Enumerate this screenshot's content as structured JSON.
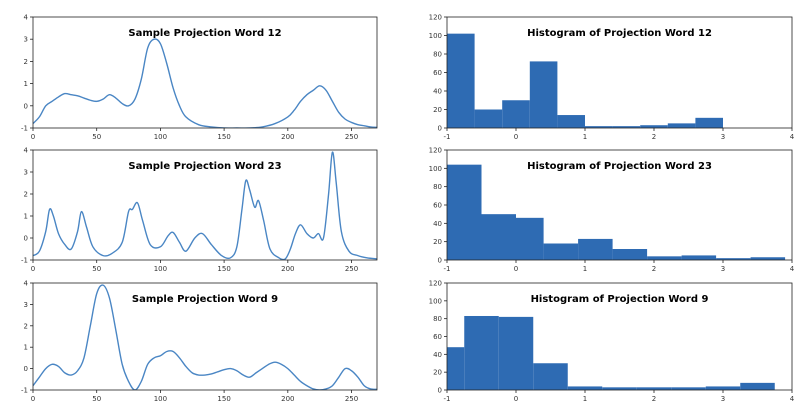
{
  "chart_data": [
    {
      "type": "line",
      "title": "Sample Projection Word 12",
      "xlim": [
        0,
        270
      ],
      "ylim": [
        -1,
        4
      ],
      "xticks": [
        0,
        50,
        100,
        150,
        200,
        250
      ],
      "yticks": [
        -1,
        0,
        1,
        2,
        3,
        4
      ],
      "color": "#4a86c4",
      "x": [
        0,
        5,
        10,
        15,
        20,
        25,
        30,
        35,
        40,
        45,
        50,
        55,
        60,
        65,
        70,
        75,
        80,
        85,
        90,
        95,
        100,
        105,
        110,
        115,
        120,
        130,
        140,
        150,
        160,
        170,
        180,
        190,
        200,
        205,
        210,
        215,
        220,
        225,
        230,
        235,
        240,
        245,
        250,
        255,
        260,
        265,
        270
      ],
      "y": [
        -0.8,
        -0.5,
        0.0,
        0.2,
        0.4,
        0.55,
        0.5,
        0.45,
        0.35,
        0.25,
        0.2,
        0.3,
        0.5,
        0.35,
        0.1,
        0.0,
        0.3,
        1.2,
        2.6,
        3.0,
        2.8,
        1.9,
        0.8,
        0.0,
        -0.5,
        -0.85,
        -0.95,
        -1.0,
        -1.0,
        -1.0,
        -0.95,
        -0.8,
        -0.5,
        -0.2,
        0.2,
        0.5,
        0.7,
        0.9,
        0.7,
        0.2,
        -0.3,
        -0.6,
        -0.75,
        -0.85,
        -0.9,
        -0.95,
        -0.97
      ]
    },
    {
      "type": "bar",
      "title": "Histogram of Projection Word 12",
      "xlim": [
        -1,
        4
      ],
      "ylim": [
        0,
        120
      ],
      "xticks": [
        -1,
        0,
        1,
        2,
        3,
        4
      ],
      "yticks": [
        0,
        20,
        40,
        60,
        80,
        100,
        120
      ],
      "color": "#2e6bb3",
      "bin_edges": [
        -1,
        -0.6,
        -0.2,
        0.2,
        0.6,
        1.0,
        1.4,
        1.8,
        2.2,
        2.6,
        3.0
      ],
      "values": [
        102,
        20,
        30,
        72,
        14,
        2,
        2,
        3,
        5,
        11
      ]
    },
    {
      "type": "line",
      "title": "Sample Projection Word 23",
      "xlim": [
        0,
        270
      ],
      "ylim": [
        -1,
        4
      ],
      "xticks": [
        0,
        50,
        100,
        150,
        200,
        250
      ],
      "yticks": [
        -1,
        0,
        1,
        2,
        3,
        4
      ],
      "color": "#4a86c4",
      "x": [
        0,
        5,
        10,
        13,
        16,
        20,
        25,
        30,
        35,
        38,
        42,
        47,
        55,
        62,
        70,
        75,
        78,
        82,
        86,
        92,
        100,
        106,
        110,
        115,
        120,
        127,
        133,
        140,
        148,
        155,
        160,
        164,
        167,
        170,
        174,
        177,
        181,
        186,
        193,
        198,
        202,
        206,
        210,
        215,
        220,
        224,
        228,
        232,
        235,
        238,
        242,
        248,
        255,
        262,
        270
      ],
      "y": [
        -0.8,
        -0.6,
        0.3,
        1.3,
        1.0,
        0.2,
        -0.3,
        -0.5,
        0.3,
        1.2,
        0.5,
        -0.4,
        -0.8,
        -0.7,
        -0.2,
        1.2,
        1.3,
        1.6,
        0.8,
        -0.3,
        -0.4,
        0.1,
        0.25,
        -0.2,
        -0.6,
        0.0,
        0.2,
        -0.3,
        -0.8,
        -0.9,
        -0.4,
        1.3,
        2.6,
        2.2,
        1.4,
        1.7,
        0.8,
        -0.5,
        -0.9,
        -0.95,
        -0.5,
        0.2,
        0.6,
        0.2,
        0.0,
        0.2,
        0.0,
        2.0,
        3.9,
        2.5,
        0.3,
        -0.6,
        -0.8,
        -0.9,
        -0.95
      ]
    },
    {
      "type": "bar",
      "title": "Histogram of Projection Word 23",
      "xlim": [
        -1,
        4
      ],
      "ylim": [
        0,
        120
      ],
      "xticks": [
        -1,
        0,
        1,
        2,
        3,
        4
      ],
      "yticks": [
        0,
        20,
        40,
        60,
        80,
        100,
        120
      ],
      "color": "#2e6bb3",
      "bin_edges": [
        -1,
        -0.5,
        0.0,
        0.4,
        0.9,
        1.4,
        1.9,
        2.4,
        2.9,
        3.4,
        3.9
      ],
      "values": [
        104,
        50,
        46,
        18,
        23,
        12,
        4,
        5,
        2,
        3
      ]
    },
    {
      "type": "line",
      "title": "Sample Projection Word 9",
      "xlim": [
        0,
        270
      ],
      "ylim": [
        -1,
        4
      ],
      "xticks": [
        0,
        50,
        100,
        150,
        200,
        250
      ],
      "yticks": [
        -1,
        0,
        1,
        2,
        3,
        4
      ],
      "color": "#4a86c4",
      "x": [
        0,
        5,
        10,
        15,
        20,
        25,
        30,
        35,
        40,
        45,
        50,
        55,
        60,
        65,
        70,
        75,
        80,
        85,
        90,
        95,
        100,
        105,
        110,
        115,
        120,
        125,
        130,
        135,
        140,
        145,
        150,
        155,
        160,
        165,
        170,
        175,
        180,
        185,
        190,
        195,
        200,
        205,
        210,
        215,
        220,
        225,
        230,
        235,
        240,
        245,
        250,
        255,
        260,
        265,
        270
      ],
      "y": [
        -0.8,
        -0.4,
        0.0,
        0.2,
        0.1,
        -0.2,
        -0.3,
        -0.1,
        0.5,
        2.0,
        3.5,
        3.9,
        3.3,
        1.8,
        0.2,
        -0.6,
        -1.0,
        -0.6,
        0.2,
        0.5,
        0.6,
        0.8,
        0.8,
        0.5,
        0.1,
        -0.2,
        -0.3,
        -0.3,
        -0.25,
        -0.15,
        -0.05,
        0.0,
        -0.1,
        -0.3,
        -0.4,
        -0.2,
        0.0,
        0.2,
        0.3,
        0.2,
        0.0,
        -0.3,
        -0.6,
        -0.8,
        -0.95,
        -1.0,
        -0.95,
        -0.8,
        -0.4,
        0.0,
        -0.1,
        -0.4,
        -0.8,
        -0.95,
        -0.97
      ]
    },
    {
      "type": "bar",
      "title": "Histogram of Projection Word 9",
      "xlim": [
        -1,
        4
      ],
      "ylim": [
        0,
        120
      ],
      "xticks": [
        -1,
        0,
        1,
        2,
        3,
        4
      ],
      "yticks": [
        0,
        20,
        40,
        60,
        80,
        100,
        120
      ],
      "color": "#2e6bb3",
      "bin_edges": [
        -1,
        -0.75,
        -0.25,
        0.25,
        0.75,
        1.25,
        1.75,
        2.25,
        2.75,
        3.25,
        3.75
      ],
      "values": [
        48,
        83,
        82,
        30,
        4,
        3,
        3,
        3,
        4,
        8
      ]
    }
  ]
}
